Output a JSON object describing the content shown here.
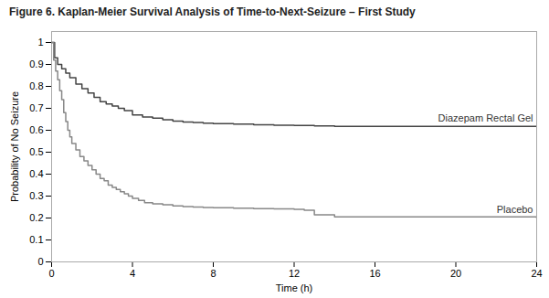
{
  "chart_data": {
    "type": "line",
    "title": "Figure 6. Kaplan-Meier Survival Analysis of Time-to-Next-Seizure – First Study",
    "xlabel": "Time (h)",
    "ylabel": "Probability of No Seizure",
    "xlim": [
      0,
      24
    ],
    "ylim": [
      0,
      1.05
    ],
    "xticks": [
      0,
      4,
      8,
      12,
      16,
      20,
      24
    ],
    "yticks": [
      0,
      0.1,
      0.2,
      0.3,
      0.4,
      0.5,
      0.6,
      0.7,
      0.8,
      0.9,
      1
    ],
    "grid": false,
    "series": [
      {
        "name": "Diazepam Rectal Gel",
        "color": "#444444",
        "line_style": "step",
        "x": [
          0,
          0.15,
          0.3,
          0.5,
          0.7,
          0.9,
          1.2,
          1.5,
          1.8,
          2.1,
          2.4,
          2.7,
          3.0,
          3.3,
          3.6,
          4.0,
          4.5,
          5.0,
          5.5,
          6.0,
          6.5,
          7.0,
          7.5,
          8.0,
          9.0,
          10.0,
          11.0,
          12.0,
          13.0,
          14.0,
          24.0
        ],
        "values": [
          1.0,
          0.93,
          0.9,
          0.88,
          0.86,
          0.84,
          0.81,
          0.79,
          0.77,
          0.75,
          0.73,
          0.72,
          0.71,
          0.7,
          0.69,
          0.67,
          0.66,
          0.655,
          0.648,
          0.642,
          0.638,
          0.635,
          0.632,
          0.63,
          0.628,
          0.625,
          0.623,
          0.622,
          0.62,
          0.618,
          0.618
        ]
      },
      {
        "name": "Placebo",
        "color": "#888888",
        "line_style": "step",
        "x": [
          0,
          0.1,
          0.2,
          0.3,
          0.4,
          0.5,
          0.6,
          0.7,
          0.8,
          0.9,
          1.0,
          1.2,
          1.4,
          1.6,
          1.8,
          2.0,
          2.2,
          2.4,
          2.6,
          2.8,
          3.0,
          3.2,
          3.4,
          3.6,
          3.8,
          4.0,
          4.3,
          4.6,
          5.0,
          5.5,
          6.0,
          6.5,
          7.0,
          7.5,
          8.0,
          9.0,
          10.0,
          11.0,
          12.0,
          12.5,
          13.0,
          14.0,
          24.0
        ],
        "values": [
          1.0,
          0.92,
          0.87,
          0.83,
          0.78,
          0.74,
          0.68,
          0.64,
          0.6,
          0.57,
          0.54,
          0.51,
          0.48,
          0.46,
          0.44,
          0.42,
          0.4,
          0.38,
          0.37,
          0.35,
          0.34,
          0.33,
          0.32,
          0.31,
          0.3,
          0.29,
          0.28,
          0.27,
          0.265,
          0.26,
          0.255,
          0.252,
          0.25,
          0.248,
          0.247,
          0.245,
          0.243,
          0.242,
          0.24,
          0.235,
          0.215,
          0.205,
          0.2
        ]
      }
    ]
  }
}
